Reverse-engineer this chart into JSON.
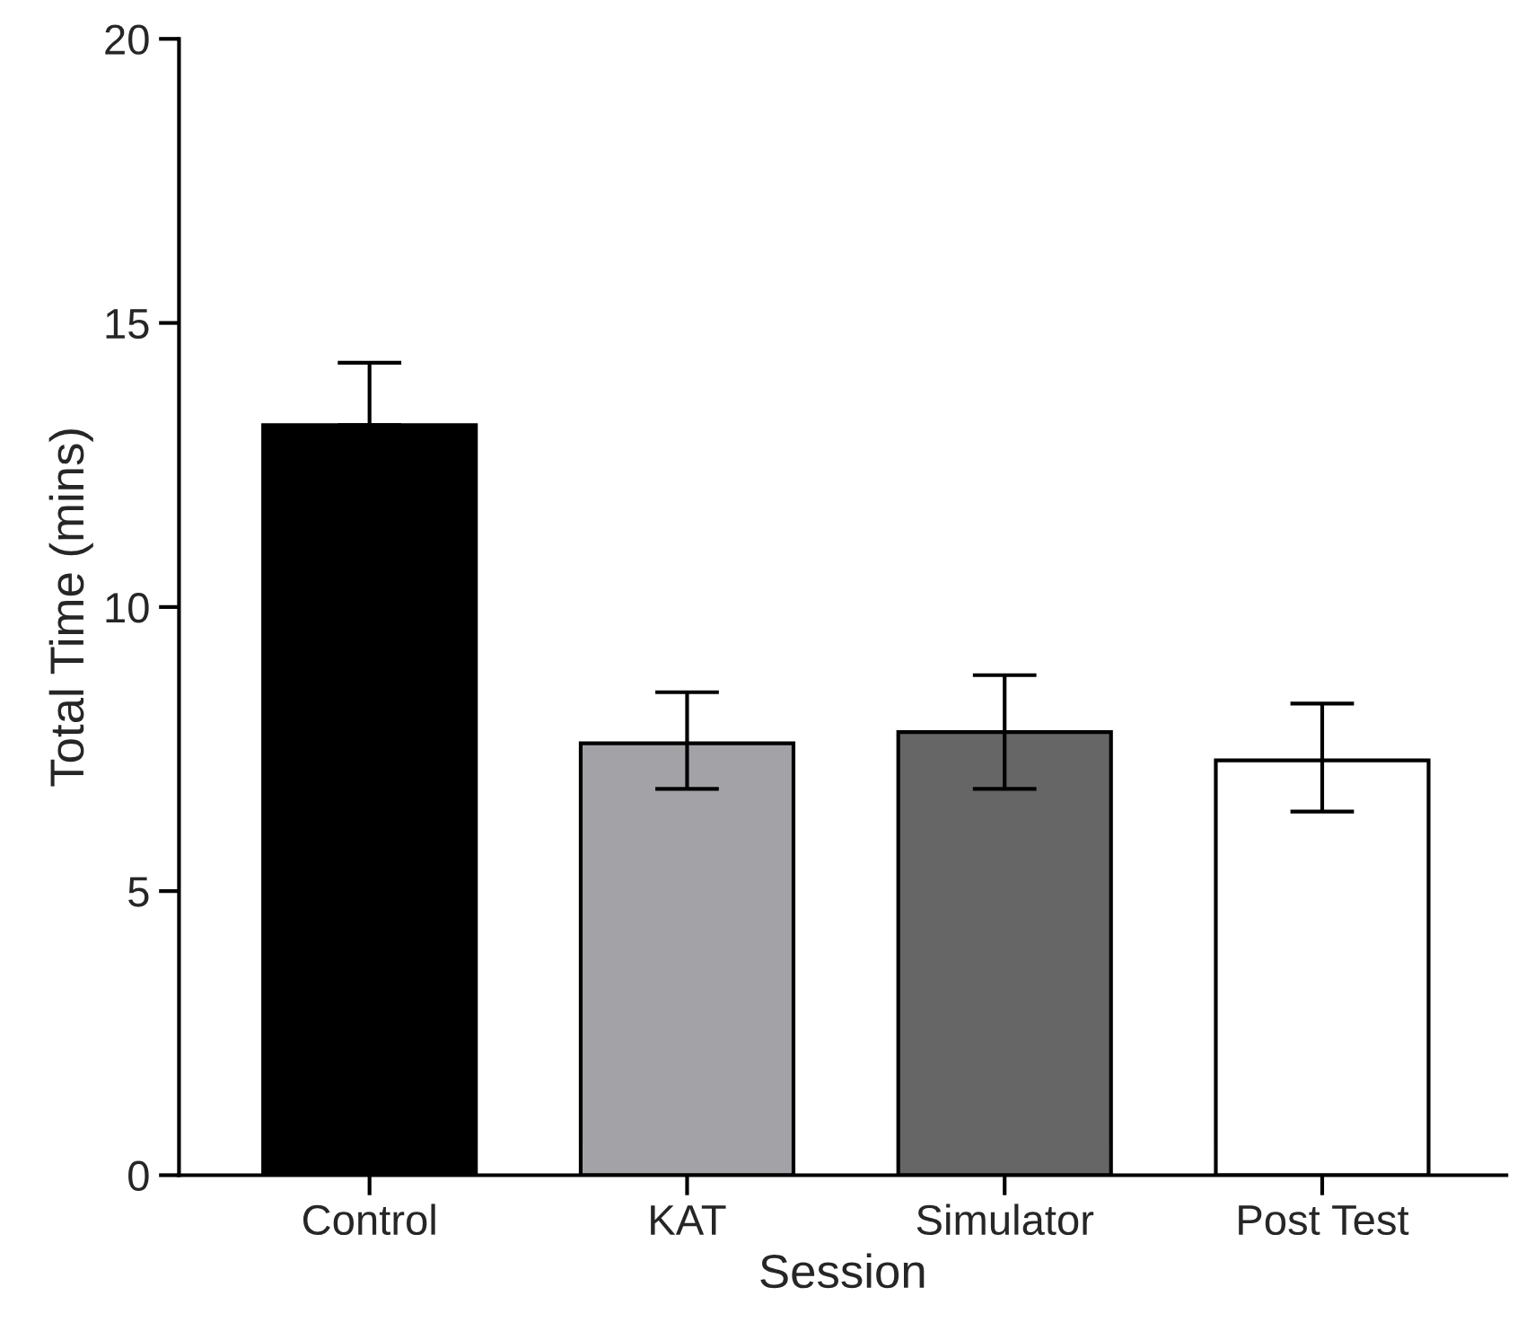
{
  "chart_data": {
    "type": "bar",
    "xlabel": "Session",
    "ylabel": "Total Time (mins)",
    "categories": [
      "Control",
      "KAT",
      "Simulator",
      "Post Test"
    ],
    "values": [
      13.2,
      7.6,
      7.8,
      7.3
    ],
    "colors": [
      "#000000",
      "#a3a2a7",
      "#666666",
      "#ffffff"
    ],
    "errors": [
      [
        13.2,
        14.3
      ],
      [
        6.8,
        8.5
      ],
      [
        6.8,
        8.8
      ],
      [
        6.4,
        8.3
      ]
    ],
    "ylim": [
      0,
      20
    ],
    "yticks": [
      0,
      5,
      10,
      15,
      20
    ],
    "grid": false,
    "legend": false
  }
}
